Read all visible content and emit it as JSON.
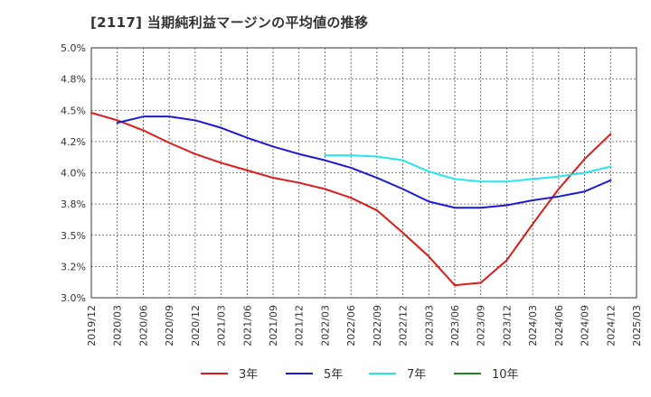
{
  "title": "[2117]  当期純利益マージンの平均値の推移",
  "chart_data": {
    "type": "line",
    "title": "[2117]  当期純利益マージンの平均値の推移",
    "x": [
      "2019/12",
      "2020/03",
      "2020/06",
      "2020/09",
      "2020/12",
      "2021/03",
      "2021/06",
      "2021/09",
      "2021/12",
      "2022/03",
      "2022/06",
      "2022/09",
      "2022/12",
      "2023/03",
      "2023/06",
      "2023/09",
      "2023/12",
      "2024/03",
      "2024/06",
      "2024/09",
      "2024/12",
      "2025/03"
    ],
    "y_ticks": [
      "3.0%",
      "3.2%",
      "3.5%",
      "3.8%",
      "4.0%",
      "4.2%",
      "4.5%",
      "4.8%",
      "5.0%"
    ],
    "ylim": [
      3.0,
      5.0
    ],
    "grid": true,
    "legend_position": "bottom",
    "series": [
      {
        "name": "3年",
        "color": "#dd1a1a",
        "values": [
          4.48,
          4.42,
          4.34,
          4.24,
          4.15,
          4.08,
          4.02,
          3.96,
          3.92,
          3.87,
          3.8,
          3.7,
          3.52,
          3.33,
          3.1,
          3.12,
          3.3,
          3.59,
          3.87,
          4.11,
          4.31,
          null
        ]
      },
      {
        "name": "5年",
        "color": "#1a1ad6",
        "values": [
          null,
          4.4,
          4.45,
          4.45,
          4.42,
          4.36,
          4.28,
          4.21,
          4.15,
          4.1,
          4.04,
          3.96,
          3.87,
          3.77,
          3.72,
          3.72,
          3.74,
          3.78,
          3.81,
          3.85,
          3.94,
          null
        ]
      },
      {
        "name": "7年",
        "color": "#22e6ee",
        "values": [
          null,
          null,
          null,
          null,
          null,
          null,
          null,
          null,
          null,
          4.14,
          4.14,
          4.13,
          4.1,
          4.01,
          3.95,
          3.93,
          3.93,
          3.95,
          3.97,
          4.0,
          4.05,
          null
        ]
      },
      {
        "name": "10年",
        "color": "#1a8a1a",
        "values": [
          null,
          null,
          null,
          null,
          null,
          null,
          null,
          null,
          null,
          null,
          null,
          null,
          null,
          null,
          null,
          null,
          null,
          null,
          null,
          null,
          null,
          null
        ]
      }
    ]
  }
}
